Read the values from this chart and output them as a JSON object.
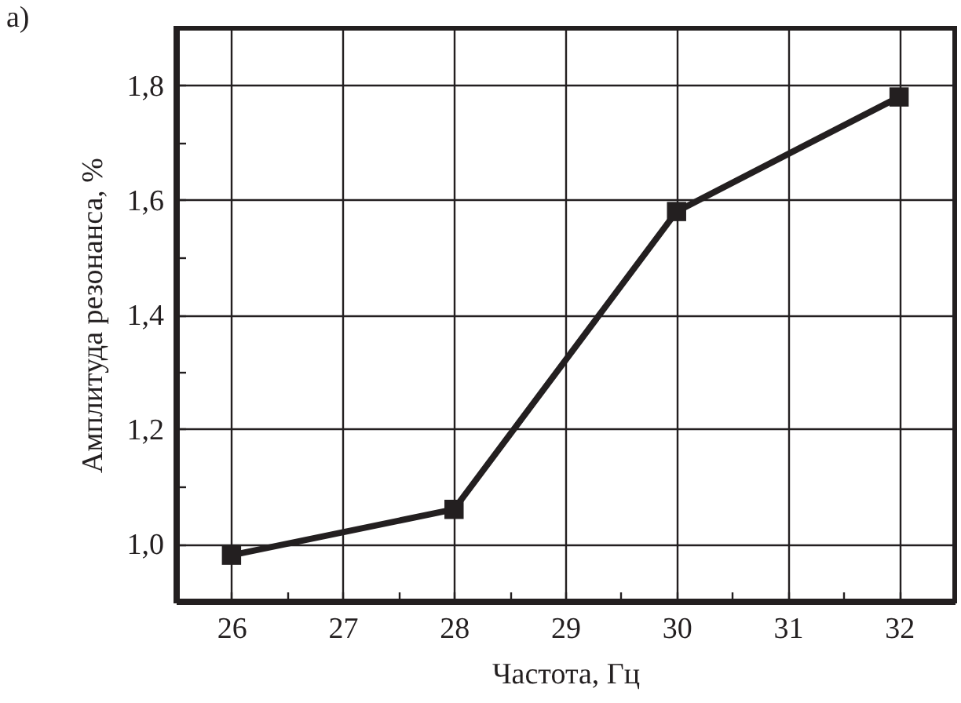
{
  "chart_data": {
    "type": "line",
    "xlabel": "Частота, Гц",
    "ylabel": "Амплитуда резонанса, %",
    "annotations": [
      "a)"
    ],
    "x": [
      26,
      28,
      30,
      32
    ],
    "series": [
      {
        "color": "#231f20",
        "values": [
          0.98,
          1.06,
          1.58,
          1.78
        ]
      }
    ],
    "xlim": [
      25.5,
      32.5
    ],
    "ylim": [
      0.9,
      1.9
    ],
    "xticks": [
      26,
      {
        "value": 26.5,
        "label": null
      },
      27,
      {
        "value": 27.5,
        "label": null
      },
      28,
      {
        "value": 28.5,
        "label": null
      },
      29,
      {
        "value": 29.5,
        "label": null
      },
      30,
      {
        "value": 30.5,
        "label": null
      },
      31,
      {
        "value": 31.5,
        "label": null
      },
      32
    ],
    "yticks": [
      {
        "value": 1.0,
        "label": "1,0"
      },
      {
        "value": 1.1,
        "label": null
      },
      {
        "value": 1.2,
        "label": "1,2"
      },
      {
        "value": 1.3,
        "label": null
      },
      {
        "value": 1.4,
        "label": "1,4"
      },
      {
        "value": 1.5,
        "label": null
      },
      {
        "value": 1.6,
        "label": "1,6"
      },
      {
        "value": 1.7,
        "label": null
      },
      {
        "value": 1.8,
        "label": "1,8"
      }
    ],
    "grid": true,
    "marker": "square",
    "line_style": "solid"
  }
}
